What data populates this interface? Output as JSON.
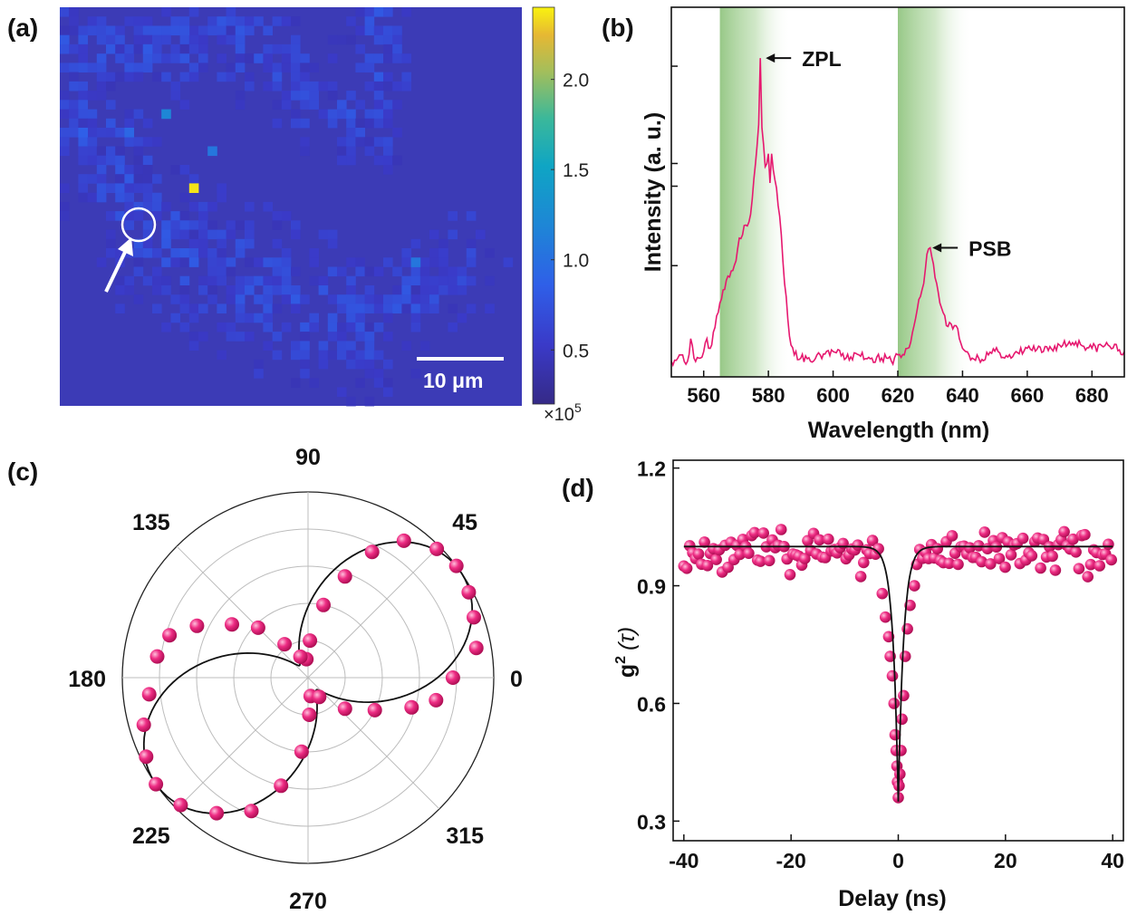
{
  "panels": {
    "a": "(a)",
    "b": "(b)",
    "c": "(c)",
    "d": "(d)"
  },
  "colors": {
    "map_bg": "#3c3bb6",
    "magenta": "#e6186f",
    "green_band": "#8cc27a",
    "fit": "#111111"
  },
  "chart_data": [
    {
      "id": "a",
      "type": "heatmap",
      "title": "",
      "colorbar": {
        "ticks": [
          "2.0",
          "1.5",
          "1.0",
          "0.5"
        ],
        "tick_values": [
          2.0,
          1.5,
          1.0,
          0.5
        ],
        "range": [
          0.2,
          2.4
        ],
        "multiplier": "×10",
        "exponent": "5",
        "colormap": "parula"
      },
      "scale_bar": "10 μm",
      "marked_emitter": {
        "col": 14,
        "row": 19,
        "value": 2.35
      },
      "bright_spots": [
        {
          "col": 11,
          "row": 11,
          "value": 1.0
        },
        {
          "col": 7,
          "row": 13,
          "value": 0.8
        },
        {
          "col": 16,
          "row": 15,
          "value": 0.9
        },
        {
          "col": 38,
          "row": 27,
          "value": 0.9
        },
        {
          "col": 2,
          "row": 13,
          "value": 0.75
        },
        {
          "col": 9,
          "row": 4,
          "value": 0.7
        },
        {
          "col": 13,
          "row": 2,
          "value": 0.65
        },
        {
          "col": 34,
          "row": 3,
          "value": 0.6
        },
        {
          "col": 42,
          "row": 24,
          "value": 0.55
        },
        {
          "col": 44,
          "row": 22,
          "value": 0.55
        }
      ]
    },
    {
      "id": "b",
      "type": "line",
      "xlabel": "Wavelength (nm)",
      "ylabel": "Intensity (a. u.)",
      "xlim": [
        550,
        690
      ],
      "xticks": [
        560,
        580,
        600,
        620,
        640,
        660,
        680
      ],
      "ylim": [
        0,
        1.0
      ],
      "shaded_bands": [
        [
          565,
          587
        ],
        [
          620,
          643
        ]
      ],
      "annotations": [
        {
          "text": "ZPL",
          "x": 577.5,
          "y": 0.955
        },
        {
          "text": "PSB",
          "x": 629,
          "y": 0.37
        }
      ],
      "x": [
        550,
        553,
        555,
        556,
        557,
        559,
        561,
        562,
        563,
        564,
        565,
        566,
        567,
        568,
        569,
        570,
        571,
        572,
        573,
        574,
        575,
        576,
        577,
        577.5,
        578,
        579,
        580,
        580.5,
        581,
        582,
        583,
        584,
        585,
        586,
        587,
        588,
        590,
        593,
        596,
        600,
        604,
        608,
        612,
        615,
        618,
        620,
        622,
        623,
        624,
        625,
        626,
        627,
        628,
        629,
        630,
        631,
        632,
        633,
        634,
        635,
        636,
        637,
        638,
        639,
        640,
        641,
        642,
        643,
        645,
        648,
        651,
        655,
        660,
        665,
        670,
        675,
        680,
        685,
        690
      ],
      "y": [
        0.02,
        0.04,
        0.02,
        0.09,
        0.03,
        0.03,
        0.09,
        0.06,
        0.11,
        0.16,
        0.2,
        0.24,
        0.27,
        0.28,
        0.3,
        0.33,
        0.4,
        0.41,
        0.44,
        0.45,
        0.52,
        0.63,
        0.75,
        0.955,
        0.74,
        0.62,
        0.66,
        0.57,
        0.66,
        0.58,
        0.5,
        0.41,
        0.26,
        0.15,
        0.07,
        0.04,
        0.03,
        0.02,
        0.04,
        0.05,
        0.03,
        0.04,
        0.03,
        0.03,
        0.02,
        0.04,
        0.04,
        0.06,
        0.08,
        0.13,
        0.18,
        0.22,
        0.26,
        0.35,
        0.37,
        0.32,
        0.26,
        0.2,
        0.17,
        0.13,
        0.14,
        0.12,
        0.13,
        0.09,
        0.06,
        0.05,
        0.04,
        0.03,
        0.03,
        0.04,
        0.05,
        0.03,
        0.06,
        0.05,
        0.07,
        0.08,
        0.06,
        0.07,
        0.05
      ]
    },
    {
      "id": "c",
      "type": "scatter",
      "polar": true,
      "angle_labels": [
        {
          "text": "90",
          "deg": 90
        },
        {
          "text": "45",
          "deg": 45
        },
        {
          "text": "0",
          "deg": 0
        },
        {
          "text": "315",
          "deg": 315
        },
        {
          "text": "270",
          "deg": 270
        },
        {
          "text": "225",
          "deg": 225
        },
        {
          "text": "180",
          "deg": 180
        },
        {
          "text": "135",
          "deg": 135
        }
      ],
      "r_max": 1.0,
      "r_gridlines": [
        0.2,
        0.4,
        0.6,
        0.8,
        1.0
      ],
      "fit": "r = 0.08 + 0.92 · cos²(θ − 35°)",
      "points": [
        {
          "angle": 0,
          "r": 0.78
        },
        {
          "angle": 10,
          "r": 0.92
        },
        {
          "angle": 20,
          "r": 0.95
        },
        {
          "angle": 28,
          "r": 0.98
        },
        {
          "angle": 37,
          "r": 1.0
        },
        {
          "angle": 45,
          "r": 0.98
        },
        {
          "angle": 55,
          "r": 0.9
        },
        {
          "angle": 63,
          "r": 0.76
        },
        {
          "angle": 70,
          "r": 0.58
        },
        {
          "angle": 78,
          "r": 0.4
        },
        {
          "angle": 87,
          "r": 0.2
        },
        {
          "angle": 95,
          "r": 0.1
        },
        {
          "angle": 110,
          "r": 0.12
        },
        {
          "angle": 125,
          "r": 0.22
        },
        {
          "angle": 135,
          "r": 0.38
        },
        {
          "angle": 145,
          "r": 0.5
        },
        {
          "angle": 155,
          "r": 0.66
        },
        {
          "angle": 163,
          "r": 0.78
        },
        {
          "angle": 172,
          "r": 0.82
        },
        {
          "angle": 186,
          "r": 0.86
        },
        {
          "angle": 196,
          "r": 0.92
        },
        {
          "angle": 206,
          "r": 0.97
        },
        {
          "angle": 215,
          "r": 1.0
        },
        {
          "angle": 225,
          "r": 0.97
        },
        {
          "angle": 236,
          "r": 0.88
        },
        {
          "angle": 247,
          "r": 0.78
        },
        {
          "angle": 256,
          "r": 0.6
        },
        {
          "angle": 265,
          "r": 0.4
        },
        {
          "angle": 272,
          "r": 0.2
        },
        {
          "angle": 278,
          "r": 0.1
        },
        {
          "angle": 300,
          "r": 0.12
        },
        {
          "angle": 320,
          "r": 0.26
        },
        {
          "angle": 334,
          "r": 0.4
        },
        {
          "angle": 344,
          "r": 0.58
        },
        {
          "angle": 350,
          "r": 0.7
        }
      ]
    },
    {
      "id": "d",
      "type": "scatter",
      "xlabel": "Delay (ns)",
      "ylabel_base": "g",
      "ylabel_sup": "2",
      "ylabel_tail": "(τ)",
      "xlim": [
        -42,
        42
      ],
      "ylim": [
        0.25,
        1.22
      ],
      "xticks": [
        -40,
        -20,
        0,
        20,
        40
      ],
      "yticks": [
        1.2,
        0.9,
        0.6,
        0.3
      ],
      "fit": "g2(τ) = 1 − 0.65 · exp(−|τ| / 1.0)",
      "dip_points": [
        {
          "x": -3.0,
          "y": 0.88
        },
        {
          "x": -2.4,
          "y": 0.82
        },
        {
          "x": -1.8,
          "y": 0.77
        },
        {
          "x": -1.5,
          "y": 0.72
        },
        {
          "x": -1.1,
          "y": 0.67
        },
        {
          "x": -0.8,
          "y": 0.6
        },
        {
          "x": -0.6,
          "y": 0.52
        },
        {
          "x": -0.4,
          "y": 0.48
        },
        {
          "x": -0.25,
          "y": 0.44
        },
        {
          "x": -0.15,
          "y": 0.4
        },
        {
          "x": 0.0,
          "y": 0.36
        },
        {
          "x": 0.15,
          "y": 0.39
        },
        {
          "x": 0.3,
          "y": 0.42
        },
        {
          "x": 0.5,
          "y": 0.48
        },
        {
          "x": 0.7,
          "y": 0.56
        },
        {
          "x": 1.0,
          "y": 0.62
        },
        {
          "x": 1.3,
          "y": 0.72
        },
        {
          "x": 1.7,
          "y": 0.79
        },
        {
          "x": 2.2,
          "y": 0.85
        },
        {
          "x": 3.0,
          "y": 0.9
        }
      ],
      "baseline_points": {
        "x_from": -40,
        "x_to": 40,
        "step": 0.55,
        "mean": 0.985,
        "spread": 0.045,
        "exclude_abs_below": 3.3
      }
    }
  ]
}
